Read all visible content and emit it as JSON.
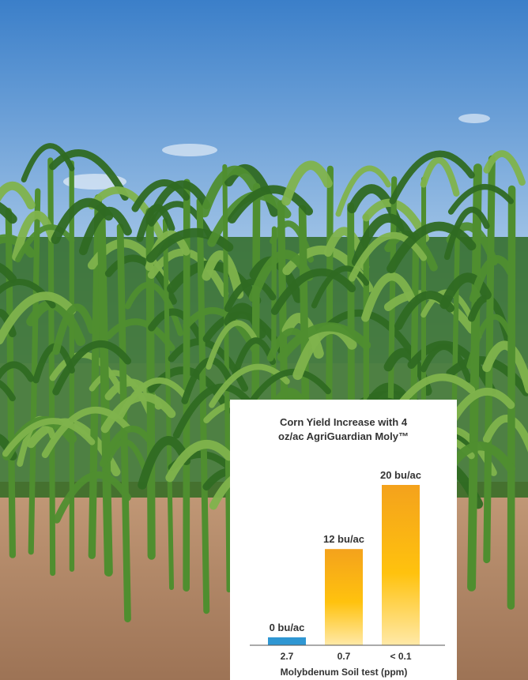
{
  "colors": {
    "sky_top": "#3b7fc9",
    "sky_bottom": "#cfe3f4",
    "leaf_dark": "#2f6a22",
    "leaf_mid": "#4f8e2f",
    "leaf_light": "#7fb34c",
    "soil": "#c39a78",
    "soil_dark": "#9d7355",
    "bar_blue": "#2f97d3",
    "bar_orange_top": "#f4a21c",
    "bar_orange_mid": "#ffc20e",
    "bar_orange_bottom": "#ffe9a8",
    "label_text": "#333333"
  },
  "chart_data": {
    "type": "bar",
    "title": "Corn Yield Increase with 4 oz/ac AgriGuardian Moly™",
    "title_lines": [
      "Corn Yield Increase with 4",
      "oz/ac AgriGuardian Moly™"
    ],
    "xlabel": "Molybdenum Soil test (ppm)",
    "ylabel": "",
    "categories": [
      "2.7",
      "0.7",
      "< 0.1"
    ],
    "values": [
      0,
      12,
      20
    ],
    "data_labels": [
      "0 bu/ac",
      "12 bu/ac",
      "20 bu/ac"
    ],
    "units": "bu/ac",
    "ylim": [
      0,
      20
    ],
    "grid": false,
    "legend": "none",
    "bar_colors": [
      "blue",
      "orange",
      "orange"
    ]
  }
}
